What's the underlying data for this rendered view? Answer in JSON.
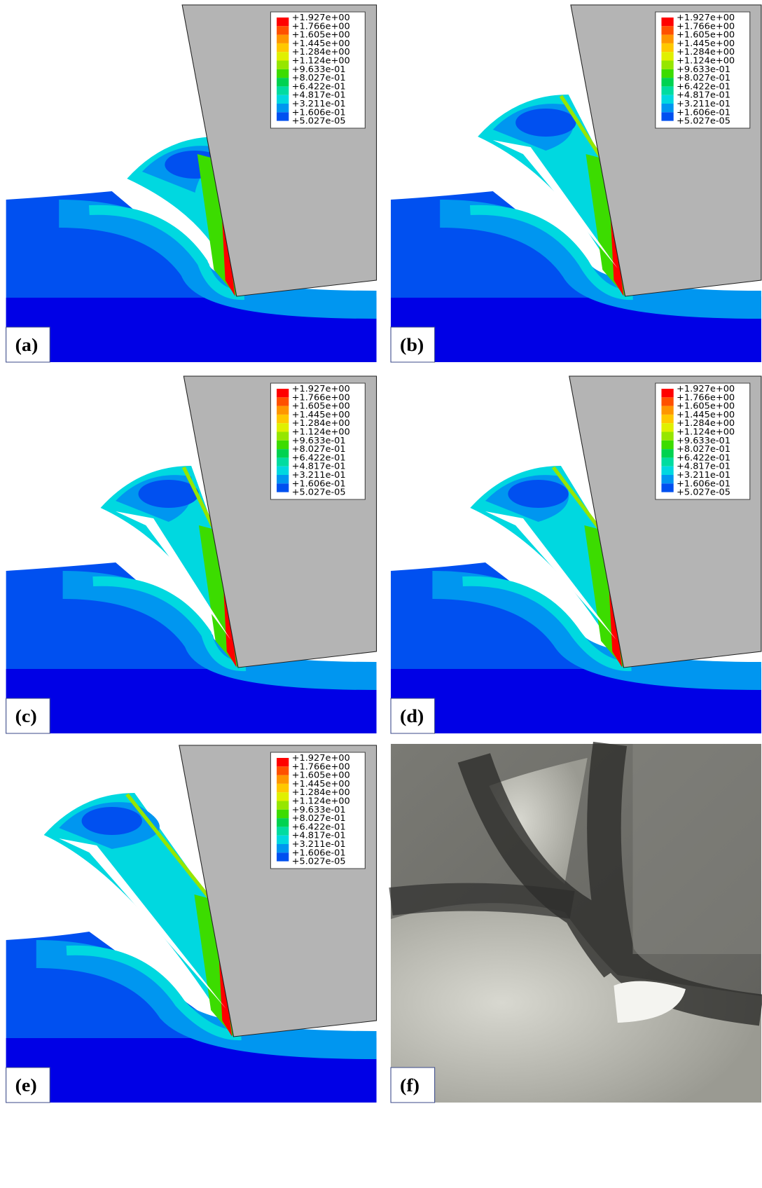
{
  "legend": {
    "labels": [
      "+1.927e+00",
      "+1.766e+00",
      "+1.605e+00",
      "+1.445e+00",
      "+1.284e+00",
      "+1.124e+00",
      "+9.633e-01",
      "+8.027e-01",
      "+6.422e-01",
      "+4.817e-01",
      "+3.211e-01",
      "+1.606e-01",
      "+5.027e-05"
    ],
    "colors": [
      "#ff0000",
      "#ff5000",
      "#ff9600",
      "#ffc800",
      "#e0f000",
      "#96e600",
      "#3cdc00",
      "#00d250",
      "#00dca0",
      "#00d8e0",
      "#0096f0",
      "#0050f0"
    ]
  },
  "panels": [
    {
      "label": "(a)"
    },
    {
      "label": "(b)"
    },
    {
      "label": "(c)"
    },
    {
      "label": "(d)"
    },
    {
      "label": "(e)"
    },
    {
      "label": "(f)"
    }
  ]
}
